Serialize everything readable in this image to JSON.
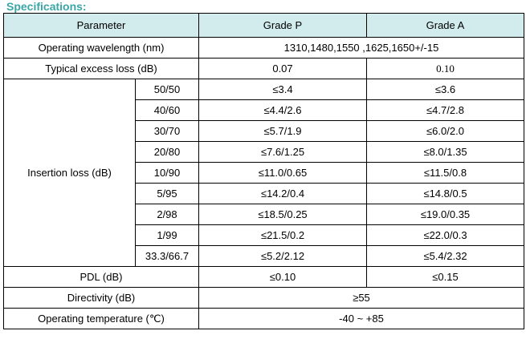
{
  "title": "Specifications:",
  "header": {
    "parameter": "Parameter",
    "grade_p": "Grade P",
    "grade_a": "Grade A"
  },
  "rows": {
    "wavelength": {
      "label": "Operating wavelength (nm)",
      "value": "1310,1480,1550 ,1625,1650+/-15"
    },
    "excess_loss": {
      "label": "Typical excess loss (dB)",
      "p": "0.07",
      "a": "0.10"
    },
    "insertion_loss": {
      "label": "Insertion loss (dB)",
      "items": [
        {
          "ratio": "50/50",
          "p": "≤3.4",
          "a": "≤3.6"
        },
        {
          "ratio": "40/60",
          "p": "≤4.4/2.6",
          "a": "≤4.7/2.8"
        },
        {
          "ratio": "30/70",
          "p": "≤5.7/1.9",
          "a": "≤6.0/2.0"
        },
        {
          "ratio": "20/80",
          "p": "≤7.6/1.25",
          "a": "≤8.0/1.35"
        },
        {
          "ratio": "10/90",
          "p": "≤11.0/0.65",
          "a": "≤11.5/0.8"
        },
        {
          "ratio": "5/95",
          "p": "≤14.2/0.4",
          "a": "≤14.8/0.5"
        },
        {
          "ratio": "2/98",
          "p": "≤18.5/0.25",
          "a": "≤19.0/0.35"
        },
        {
          "ratio": "1/99",
          "p": "≤21.5/0.2",
          "a": "≤22.0/0.3"
        },
        {
          "ratio": "33.3/66.7",
          "p": "≤5.2/2.12",
          "a": "≤5.4/2.32"
        }
      ]
    },
    "pdl": {
      "label": "PDL (dB)",
      "p": "≤0.10",
      "a": "≤0.15"
    },
    "directivity": {
      "label": "Directivity (dB)",
      "value": "≥55"
    },
    "temperature": {
      "label": "Operating temperature (℃)",
      "value": "-40 ~ +85"
    }
  },
  "colors": {
    "title": "#3aa6a6",
    "header_bg": "#d2ecee",
    "border": "#000000"
  }
}
